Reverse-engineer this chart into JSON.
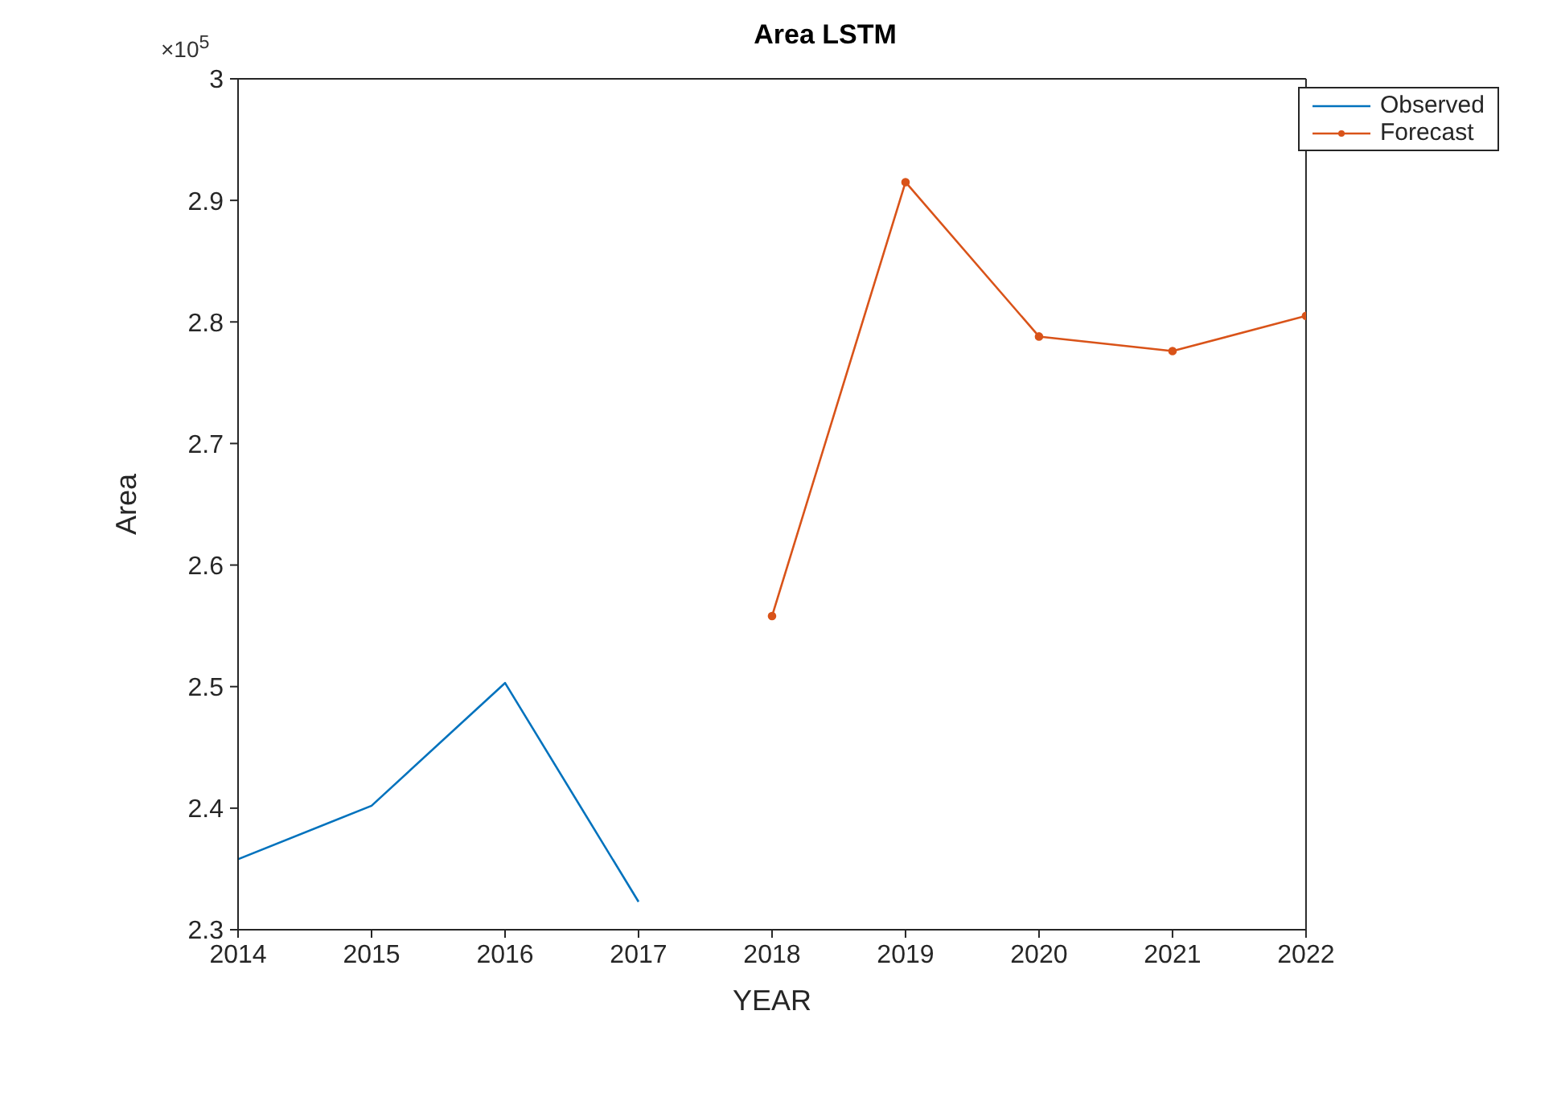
{
  "chart_data": {
    "type": "line",
    "title": "Area LSTM",
    "xlabel": "YEAR",
    "ylabel": "Area",
    "annotations": [
      "×10$^{5}$"
    ],
    "series": [
      {
        "name": "Observed",
        "color": "#0072bd",
        "x": [
          2014,
          2015,
          2016,
          2017
        ],
        "values": [
          2.358,
          2.402,
          2.503,
          2.323
        ],
        "marker": "none"
      },
      {
        "name": "Forecast",
        "color": "#d95319",
        "x": [
          2018,
          2019,
          2020,
          2021,
          2022
        ],
        "values": [
          2.558,
          2.915,
          2.788,
          2.776,
          2.805
        ],
        "marker": "circle"
      }
    ],
    "xlim": [
      2014,
      2022
    ],
    "xticks": [
      2014,
      2015,
      2016,
      2017,
      2018,
      2019,
      2020,
      2021,
      2022
    ],
    "ylim": [
      2.3,
      3
    ],
    "yticks": [
      2.3,
      2.4,
      2.5,
      2.6,
      2.7,
      2.8,
      2.9,
      3
    ],
    "grid": false,
    "legend": "top right",
    "line_style": "solid"
  }
}
